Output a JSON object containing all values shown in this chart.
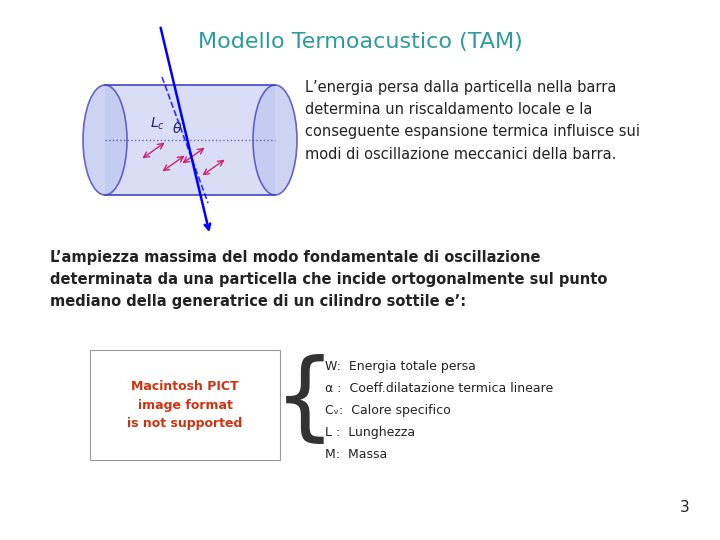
{
  "title": "Modello Termoacustico (TAM)",
  "title_color": "#2E9B9B",
  "title_fontsize": 16,
  "bg_color": "#ffffff",
  "text_block1": "L’energia persa dalla particella nella barra\ndetermina un riscaldamento locale e la\nconseguente espansione termica influisce sui\nmodi di oscillazione meccanici della barra.",
  "text_block2": "L’ampiezza massima del modo fondamentale di oscillazione\ndeterminata da una particella che incide ortogonalmente sul punto\nmediano della generatrice di un cilindro sottile e’:",
  "legend_lines": [
    "W:  Energia totale persa",
    "α :  Coeff.dilatazione termica lineare",
    "Cᵥ:  Calore specifico",
    "L :  Lunghezza",
    "M:  Massa"
  ],
  "page_number": "3",
  "text_fontsize": 10.5,
  "legend_fontsize": 9,
  "small_text_color": "#222222",
  "cylinder_color": "#C0C8F0",
  "cylinder_edge_color": "#4444BB"
}
